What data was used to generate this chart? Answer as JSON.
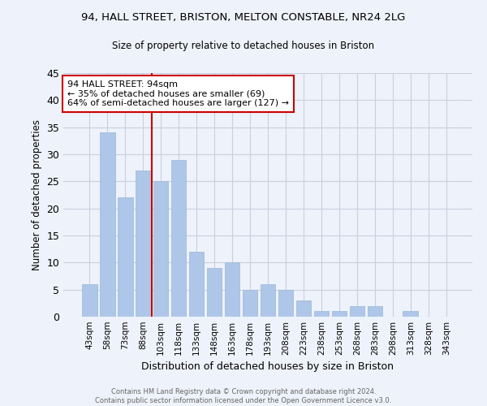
{
  "title1": "94, HALL STREET, BRISTON, MELTON CONSTABLE, NR24 2LG",
  "title2": "Size of property relative to detached houses in Briston",
  "xlabel": "Distribution of detached houses by size in Briston",
  "ylabel": "Number of detached properties",
  "categories": [
    "43sqm",
    "58sqm",
    "73sqm",
    "88sqm",
    "103sqm",
    "118sqm",
    "133sqm",
    "148sqm",
    "163sqm",
    "178sqm",
    "193sqm",
    "208sqm",
    "223sqm",
    "238sqm",
    "253sqm",
    "268sqm",
    "283sqm",
    "298sqm",
    "313sqm",
    "328sqm",
    "343sqm"
  ],
  "values": [
    6,
    34,
    22,
    27,
    25,
    29,
    12,
    9,
    10,
    5,
    6,
    5,
    3,
    1,
    1,
    2,
    2,
    0,
    1,
    0,
    0
  ],
  "bar_color": "#aec6e8",
  "bar_edge_color": "#9ab8d8",
  "vline_x": 3.5,
  "vline_color": "#cc0000",
  "annotation_text": "94 HALL STREET: 94sqm\n← 35% of detached houses are smaller (69)\n64% of semi-detached houses are larger (127) →",
  "annotation_box_color": "#ffffff",
  "annotation_box_edge": "#cc0000",
  "ylim": [
    0,
    45
  ],
  "yticks": [
    0,
    5,
    10,
    15,
    20,
    25,
    30,
    35,
    40,
    45
  ],
  "footer": "Contains HM Land Registry data © Crown copyright and database right 2024.\nContains public sector information licensed under the Open Government Licence v3.0.",
  "bg_color": "#eef2fa",
  "grid_color": "#c8d0e0"
}
